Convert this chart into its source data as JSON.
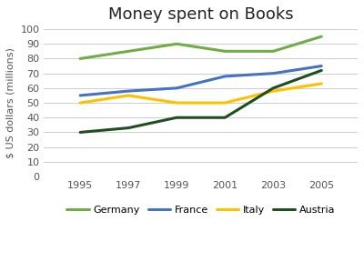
{
  "title": "Money spent on Books",
  "ylabel": "$ US dollars (millions)",
  "years": [
    1995,
    1997,
    1999,
    2001,
    2003,
    2005
  ],
  "series": {
    "Germany": {
      "values": [
        80,
        85,
        90,
        85,
        85,
        95
      ],
      "color": "#70ad47"
    },
    "France": {
      "values": [
        55,
        58,
        60,
        68,
        70,
        75
      ],
      "color": "#4472c4"
    },
    "Italy": {
      "values": [
        50,
        55,
        50,
        50,
        58,
        63
      ],
      "color": "#ffc000"
    },
    "Austria": {
      "values": [
        30,
        33,
        40,
        40,
        60,
        72
      ],
      "color": "#1f4e1f"
    }
  },
  "ylim": [
    0,
    100
  ],
  "yticks": [
    0,
    10,
    20,
    30,
    40,
    50,
    60,
    70,
    80,
    90,
    100
  ],
  "legend_order": [
    "Germany",
    "France",
    "Italy",
    "Austria"
  ],
  "background_color": "#ffffff",
  "grid_color": "#d0d0d0",
  "title_fontsize": 13,
  "axis_fontsize": 8,
  "tick_fontsize": 8
}
